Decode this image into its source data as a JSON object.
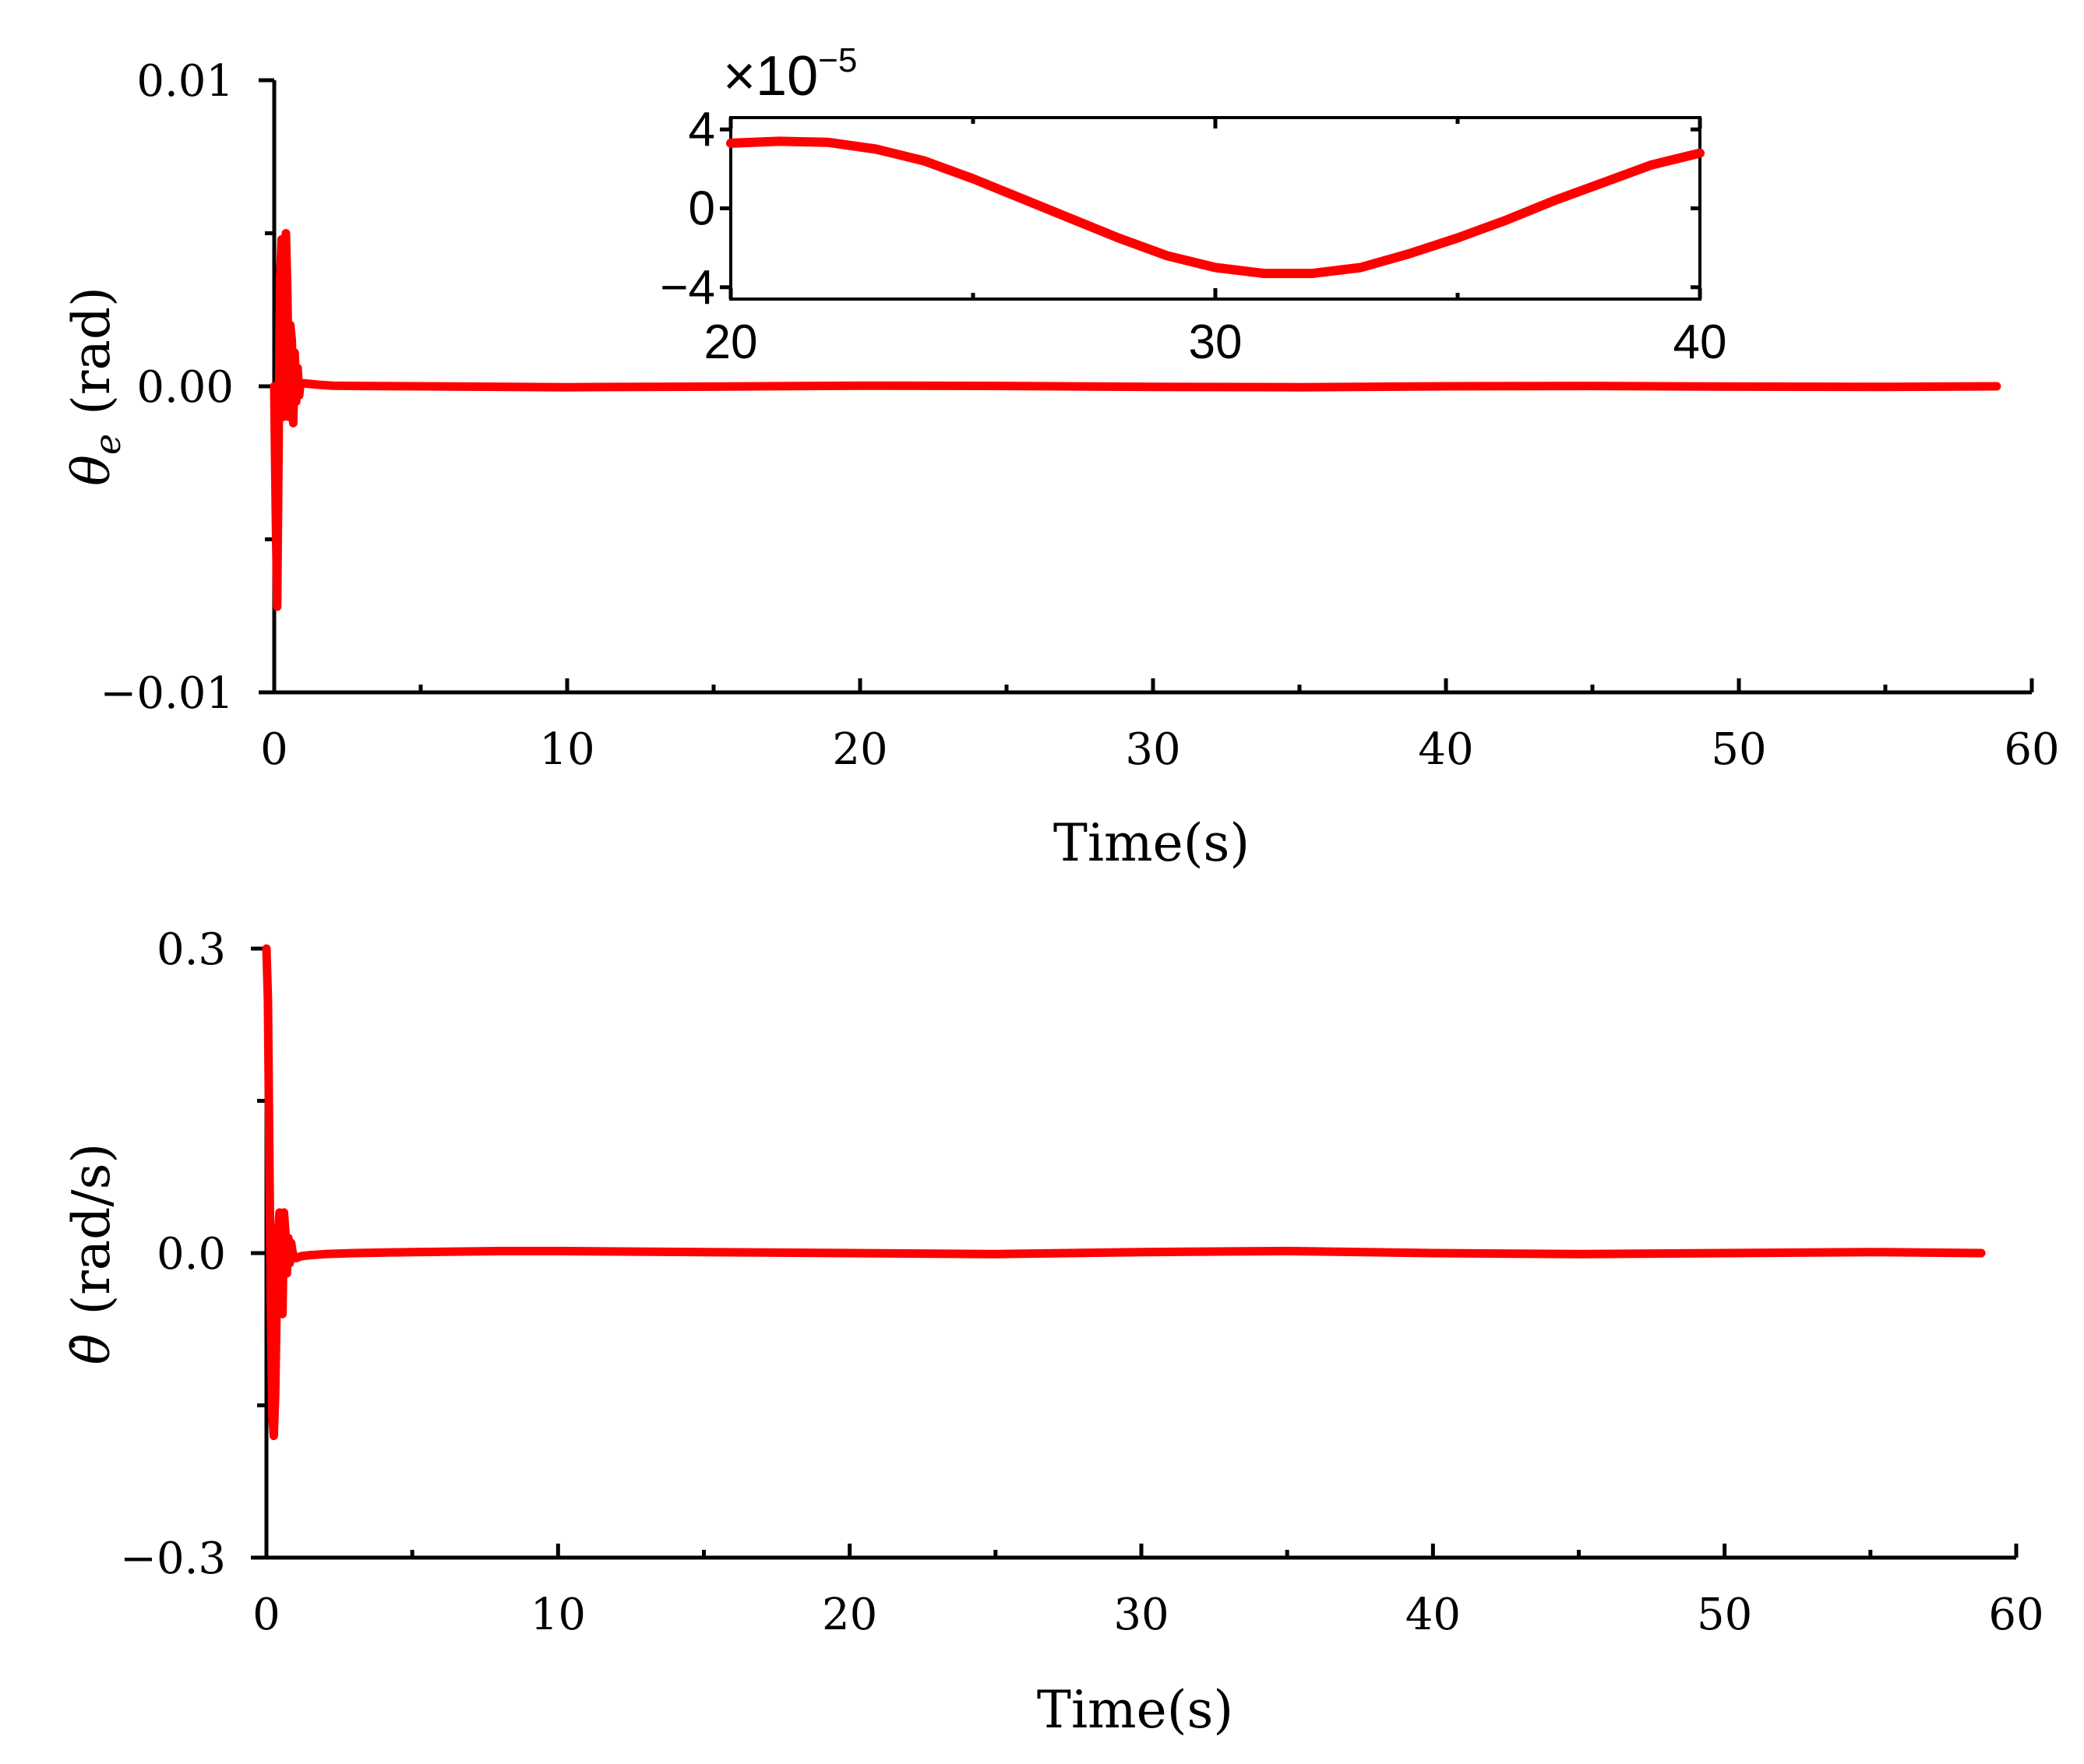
{
  "chart_data": [
    {
      "id": "theta-e",
      "type": "line",
      "xlabel": "Time(s)",
      "ylabel_symbol": "θ",
      "ylabel_subscript": "e",
      "ylabel_unit": "(rad)",
      "xlim": [
        0,
        60
      ],
      "ylim": [
        -0.01,
        0.01
      ],
      "x_ticks": [
        0,
        10,
        20,
        30,
        40,
        50,
        60
      ],
      "x_tick_labels": [
        "0",
        "10",
        "20",
        "30",
        "40",
        "50",
        "60"
      ],
      "y_ticks": [
        -0.01,
        0.0,
        0.01
      ],
      "y_tick_labels": [
        "−0.01",
        "0.00",
        "0.01"
      ],
      "grid": false,
      "color": "#ff0000",
      "series": [
        {
          "x": [
            0,
            0.05,
            0.1,
            0.15,
            0.2,
            0.25,
            0.3,
            0.35,
            0.4,
            0.45,
            0.5,
            0.55,
            0.6,
            0.65,
            0.7,
            0.75,
            0.8,
            0.85,
            0.9,
            1.0,
            1.2,
            1.5,
            2.0,
            3,
            5,
            8,
            10,
            15,
            20,
            25,
            30,
            35,
            40,
            45,
            50,
            55,
            58.8
          ],
          "y": [
            0,
            -0.004,
            -0.0072,
            -0.002,
            0.0035,
            0.0048,
            -0.001,
            0.0045,
            0.005,
            0.003,
            -0.001,
            0.002,
            0.0015,
            -0.0012,
            0.0011,
            -0.0005,
            0.0006,
            -0.0003,
            0.0001,
            0.0001,
            8e-05,
            5e-05,
            2e-05,
            1e-05,
            0,
            -2e-05,
            -3e-05,
            -1e-05,
            2e-05,
            1e-05,
            -2e-05,
            -3e-05,
            0,
            1e-05,
            -1e-05,
            -2e-05,
            0
          ]
        }
      ],
      "inset": {
        "xlim": [
          20,
          40
        ],
        "ylim": [
          -4.6,
          4.6
        ],
        "x_ticks": [
          20,
          30,
          40
        ],
        "x_tick_labels": [
          "20",
          "30",
          "40"
        ],
        "y_ticks": [
          -4,
          0,
          4
        ],
        "y_tick_labels": [
          "−4",
          "0",
          "4"
        ],
        "multiplier_symbol": "×10",
        "multiplier_exponent": "−5",
        "x": [
          20,
          21,
          22,
          23,
          24,
          25,
          26,
          27,
          28,
          29,
          30,
          31,
          32,
          33,
          34,
          35,
          36,
          37,
          38,
          39,
          40
        ],
        "y": [
          3.3,
          3.4,
          3.35,
          3.0,
          2.4,
          1.5,
          0.5,
          -0.5,
          -1.5,
          -2.4,
          -3.0,
          -3.3,
          -3.3,
          -3.0,
          -2.3,
          -1.5,
          -0.6,
          0.4,
          1.3,
          2.2,
          2.8
        ]
      }
    },
    {
      "id": "theta-dot",
      "type": "line",
      "xlabel": "Time(s)",
      "ylabel_symbol": "θ̇",
      "ylabel_unit": "(rad/s)",
      "xlim": [
        0,
        60
      ],
      "ylim": [
        -0.3,
        0.3
      ],
      "x_ticks": [
        0,
        10,
        20,
        30,
        40,
        50,
        60
      ],
      "x_tick_labels": [
        "0",
        "10",
        "20",
        "30",
        "40",
        "50",
        "60"
      ],
      "y_ticks": [
        -0.3,
        0.0,
        0.3
      ],
      "y_tick_labels": [
        "−0.3",
        "0.0",
        "0.3"
      ],
      "grid": false,
      "color": "#ff0000",
      "series": [
        {
          "x": [
            0,
            0.05,
            0.1,
            0.15,
            0.2,
            0.25,
            0.3,
            0.35,
            0.4,
            0.45,
            0.5,
            0.55,
            0.6,
            0.65,
            0.7,
            0.75,
            0.8,
            0.85,
            0.9,
            1.0,
            1.2,
            1.5,
            2.0,
            3,
            5,
            8,
            10,
            15,
            20,
            25,
            30,
            35,
            40,
            45,
            50,
            55,
            58.8
          ],
          "y": [
            0.3,
            0.25,
            0.1,
            -0.05,
            -0.16,
            -0.18,
            -0.14,
            -0.05,
            0.02,
            0.04,
            -0.03,
            -0.06,
            0.04,
            0.02,
            -0.02,
            0.015,
            -0.01,
            0.01,
            0.0,
            -0.005,
            -0.003,
            -0.002,
            -0.001,
            0.0,
            0.001,
            0.002,
            0.002,
            0.001,
            0.0,
            -0.001,
            0.001,
            0.002,
            0.0,
            -0.001,
            0.0,
            0.001,
            0.0
          ]
        }
      ]
    }
  ]
}
